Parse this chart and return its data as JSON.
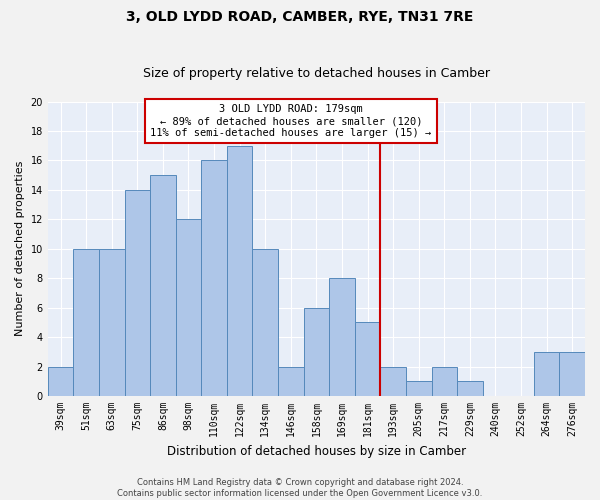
{
  "title": "3, OLD LYDD ROAD, CAMBER, RYE, TN31 7RE",
  "subtitle": "Size of property relative to detached houses in Camber",
  "xlabel": "Distribution of detached houses by size in Camber",
  "ylabel": "Number of detached properties",
  "bar_labels": [
    "39sqm",
    "51sqm",
    "63sqm",
    "75sqm",
    "86sqm",
    "98sqm",
    "110sqm",
    "122sqm",
    "134sqm",
    "146sqm",
    "158sqm",
    "169sqm",
    "181sqm",
    "193sqm",
    "205sqm",
    "217sqm",
    "229sqm",
    "240sqm",
    "252sqm",
    "264sqm",
    "276sqm"
  ],
  "bar_values": [
    2,
    10,
    10,
    14,
    15,
    12,
    16,
    17,
    10,
    2,
    6,
    8,
    5,
    2,
    1,
    2,
    1,
    0,
    0,
    3,
    3
  ],
  "bar_color": "#aec6e8",
  "bar_edge_color": "#5589bb",
  "red_line_x": 12.5,
  "annotation_text": "3 OLD LYDD ROAD: 179sqm\n← 89% of detached houses are smaller (120)\n11% of semi-detached houses are larger (15) →",
  "annotation_box_color": "#ffffff",
  "annotation_border_color": "#cc0000",
  "ylim": [
    0,
    20
  ],
  "yticks": [
    0,
    2,
    4,
    6,
    8,
    10,
    12,
    14,
    16,
    18,
    20
  ],
  "background_color": "#e8eef8",
  "grid_color": "#ffffff",
  "footer_line1": "Contains HM Land Registry data © Crown copyright and database right 2024.",
  "footer_line2": "Contains public sector information licensed under the Open Government Licence v3.0.",
  "title_fontsize": 10,
  "subtitle_fontsize": 9,
  "tick_fontsize": 7,
  "ylabel_fontsize": 8,
  "xlabel_fontsize": 8.5,
  "footer_fontsize": 6,
  "annotation_fontsize": 7.5
}
